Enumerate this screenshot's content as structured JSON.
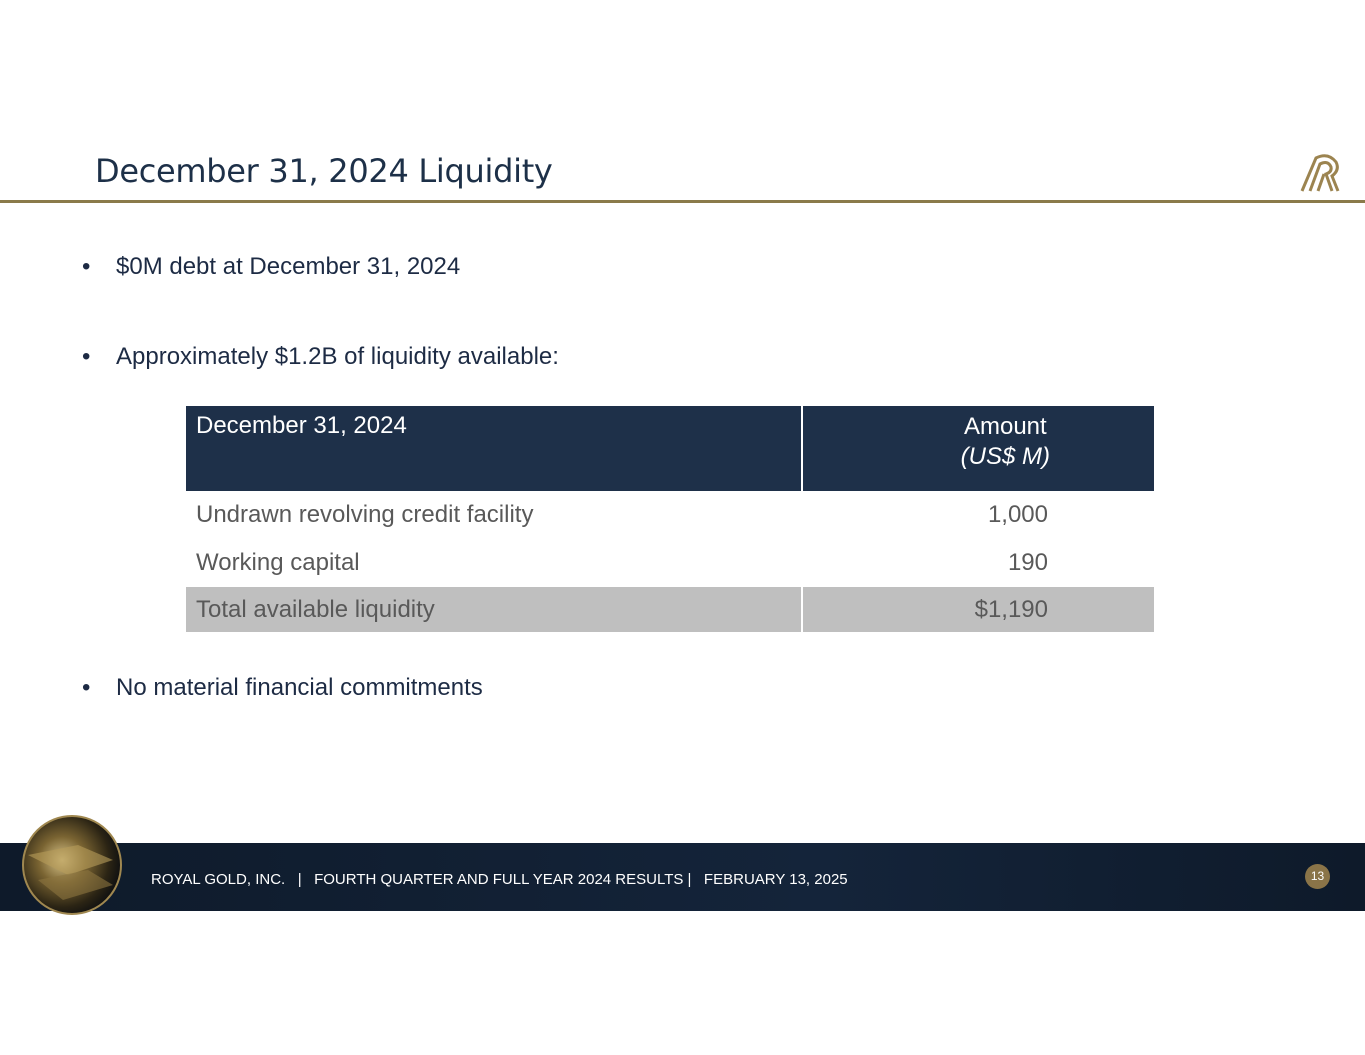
{
  "header": {
    "title": "December 31, 2024 Liquidity"
  },
  "bullets": [
    "$0M debt at December 31, 2024",
    "Approximately $1.2B of liquidity available:",
    "No material financial commitments"
  ],
  "table": {
    "header": [
      "December 31, 2024",
      "Amount",
      "(US$ M)"
    ],
    "rows": [
      [
        "Undrawn revolving credit facility",
        "1,000"
      ],
      [
        "Working capital",
        "190"
      ]
    ],
    "total": [
      "Total available liquidity",
      "$1,190"
    ]
  },
  "footer": {
    "text": "ROYAL GOLD, INC.   |   FOURTH QUARTER AND FULL YEAR 2024 RESULTS |   FEBRUARY 13, 2025",
    "page": "13"
  }
}
